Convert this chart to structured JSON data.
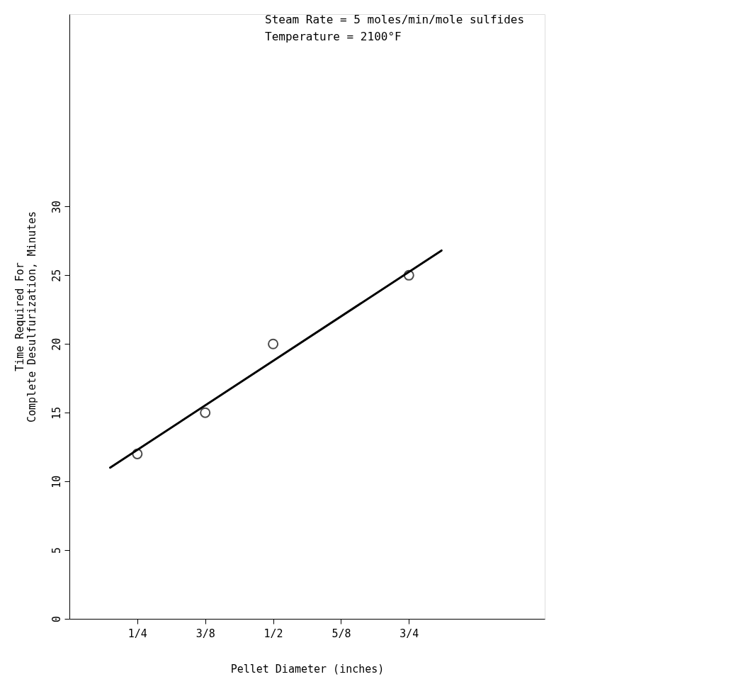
{
  "chart_data": {
    "type": "scatter",
    "xlabel": "Pellet Diameter (inches)",
    "ylabel": "Time Required For\nComplete Desulfurization, Minutes",
    "annotations": [
      "Steam Rate  = 5 moles/min/mole sulfides",
      "Temperature = 2100°F"
    ],
    "series": [
      {
        "color": "#000000",
        "marker": "circle",
        "x": [
          0.25,
          0.375,
          0.5,
          0.75
        ],
        "values": [
          12,
          15,
          20,
          25
        ]
      },
      {
        "type": "line",
        "color": "#000000",
        "line_style": "solid",
        "marker": "none",
        "x": [
          0.2,
          0.81
        ],
        "values": [
          11,
          26.8
        ]
      }
    ],
    "xlim": [
      0.125,
      1.0
    ],
    "xticks": [
      {
        "value": 0.25,
        "label": "1/4"
      },
      {
        "value": 0.375,
        "label": "3/8"
      },
      {
        "value": 0.5,
        "label": "1/2"
      },
      {
        "value": 0.625,
        "label": "5/8"
      },
      {
        "value": 0.75,
        "label": "3/4"
      }
    ],
    "ylim": [
      0,
      44
    ],
    "yticks": [
      0,
      5,
      10,
      15,
      20,
      25,
      30
    ],
    "grid": false
  }
}
